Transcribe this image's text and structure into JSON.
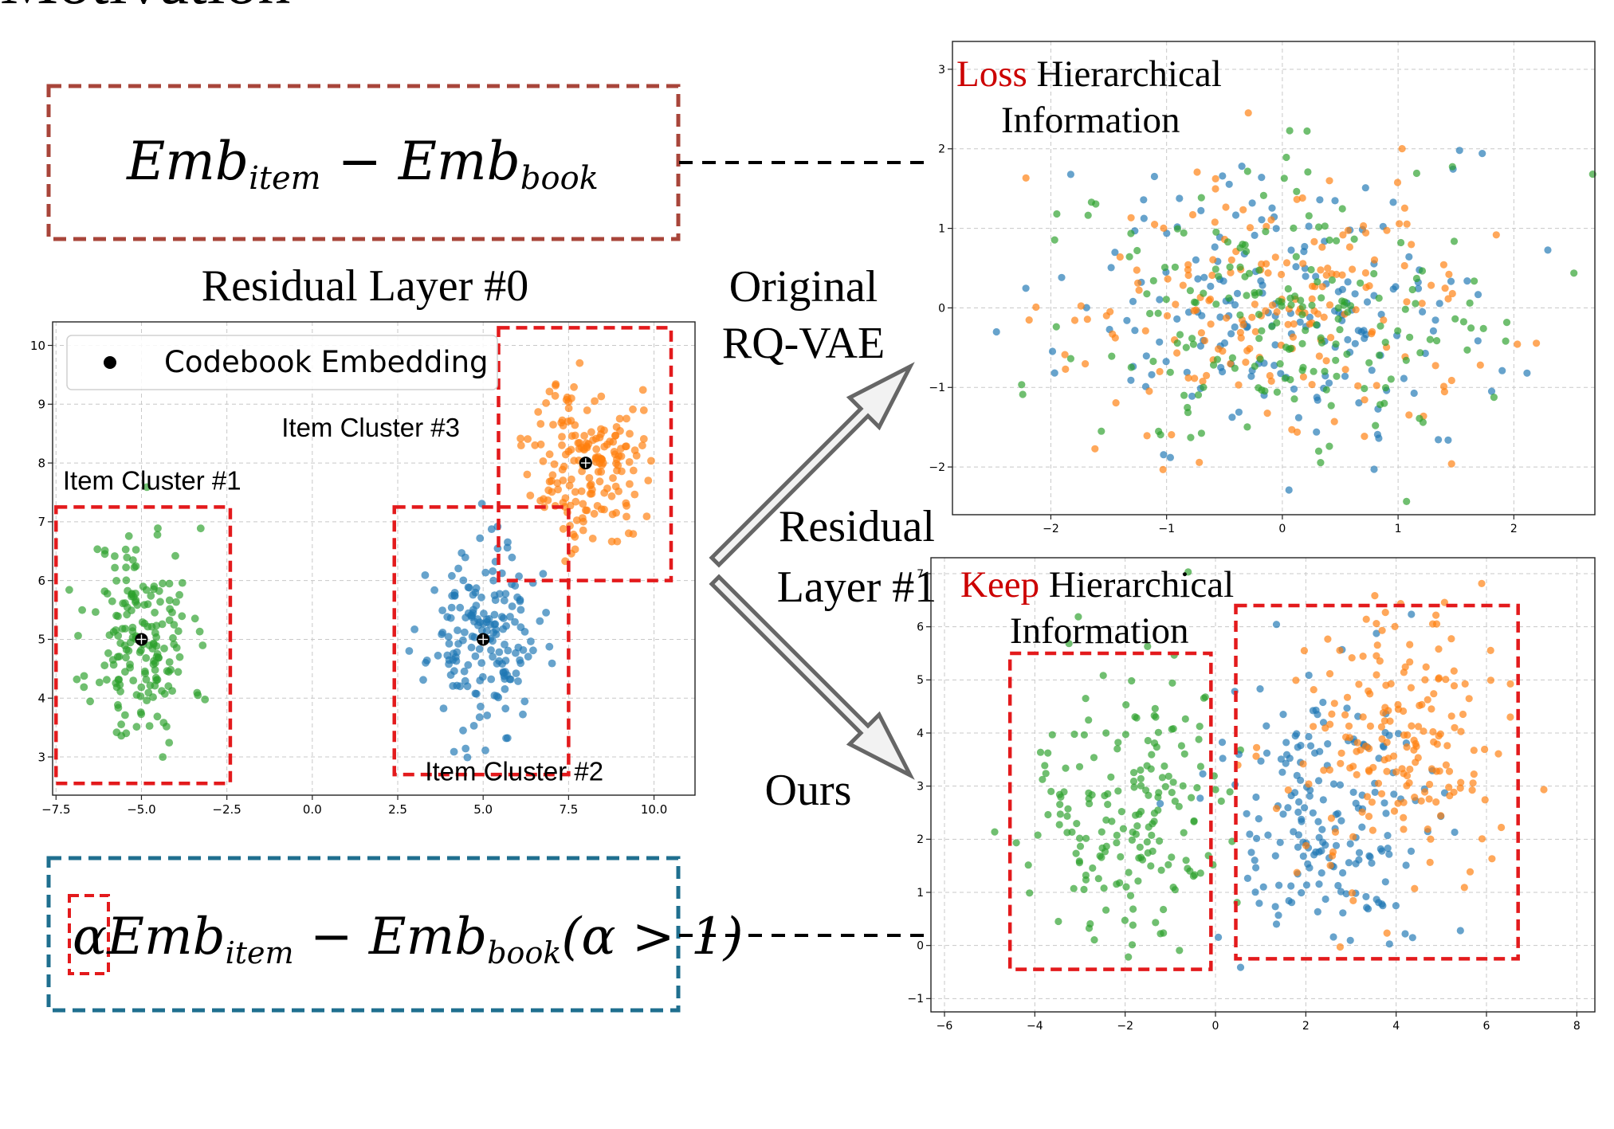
{
  "page_title_fragment": "Motivation",
  "formula_top": {
    "main": "Emb",
    "sub1": "item",
    "minus": " − ",
    "main2": "Emb",
    "sub2": "book"
  },
  "formula_bottom": {
    "alpha": "α",
    "main": "Emb",
    "sub1": "item",
    "minus": " − ",
    "main2": "Emb",
    "sub2": "book",
    "cond": "(α > 1)"
  },
  "labels": {
    "residual_layer_0": "Residual Layer #0",
    "original_line1": "Original",
    "original_line2": "RQ-VAE",
    "residual_line1": "Residual",
    "residual_line2": "Layer #1",
    "ours": "Ours"
  },
  "plot_titles": {
    "top_red": "Loss",
    "top_black": " Hierarchical",
    "top_line2": "Information",
    "bottom_red": "Keep",
    "bottom_black": " Hierarchical",
    "bottom_line2": "Information"
  },
  "chart_data": [
    {
      "id": "residual-layer-0",
      "type": "scatter",
      "title": "Residual Layer #0",
      "legend": {
        "label": "Codebook Embedding",
        "placement": "top-left"
      },
      "xlim": [
        -7.6,
        11.2
      ],
      "ylim": [
        2.35,
        10.4
      ],
      "x_ticks": [
        -7.5,
        -5.0,
        -2.5,
        0.0,
        2.5,
        5.0,
        7.5,
        10.0
      ],
      "x_tick_labels": [
        "−7.5",
        "−5.0",
        "−2.5",
        "0.0",
        "2.5",
        "5.0",
        "7.5",
        "10.0"
      ],
      "y_ticks": [
        3,
        4,
        5,
        6,
        7,
        8,
        9,
        10
      ],
      "y_tick_labels": [
        "3",
        "4",
        "5",
        "6",
        "7",
        "8",
        "9",
        "10"
      ],
      "grid": true,
      "clusters": [
        {
          "name": "Item Cluster #1",
          "color": "#2ca02c",
          "center": [
            -5.0,
            5.0
          ],
          "spread": [
            0.75,
            0.95
          ],
          "n": 180,
          "seed": 11
        },
        {
          "name": "Item Cluster #2",
          "color": "#1f77b4",
          "center": [
            5.0,
            5.0
          ],
          "spread": [
            0.8,
            0.75
          ],
          "n": 180,
          "seed": 23
        },
        {
          "name": "Item Cluster #3",
          "color": "#ff7f0e",
          "center": [
            8.0,
            8.0
          ],
          "spread": [
            0.8,
            0.7
          ],
          "n": 180,
          "seed": 37
        }
      ],
      "codebook_points": [
        [
          -5.0,
          5.0
        ],
        [
          5.0,
          5.0
        ],
        [
          8.0,
          8.0
        ]
      ],
      "cluster_labels": [
        {
          "text": "Item Cluster #1",
          "x": -7.3,
          "y": 7.55
        },
        {
          "text": "Item Cluster #3",
          "x": -0.9,
          "y": 8.45
        },
        {
          "text": "Item Cluster #2",
          "x": 3.3,
          "y": 2.6
        }
      ],
      "boxes": [
        {
          "x0": -7.5,
          "x1": -2.4,
          "y0": 2.55,
          "y1": 7.25
        },
        {
          "x0": 2.4,
          "x1": 7.5,
          "y0": 2.7,
          "y1": 7.25
        },
        {
          "x0": 5.45,
          "x1": 10.5,
          "y0": 6.0,
          "y1": 10.3
        }
      ]
    },
    {
      "id": "original-rqvae-layer-1",
      "type": "scatter",
      "xlim": [
        -2.85,
        2.7
      ],
      "ylim": [
        -2.6,
        3.35
      ],
      "x_ticks": [
        -2,
        -1,
        0,
        1,
        2
      ],
      "x_tick_labels": [
        "−2",
        "−1",
        "0",
        "1",
        "2"
      ],
      "y_ticks": [
        -2,
        -1,
        0,
        1,
        2,
        3
      ],
      "y_tick_labels": [
        "−2",
        "−1",
        "0",
        "1",
        "2",
        "3"
      ],
      "grid": true,
      "clusters": [
        {
          "color": "#1f77b4",
          "center": [
            0.0,
            0.0
          ],
          "spread": [
            0.9,
            0.85
          ],
          "n": 190,
          "seed": 101
        },
        {
          "color": "#ff7f0e",
          "center": [
            0.0,
            0.0
          ],
          "spread": [
            0.9,
            0.85
          ],
          "n": 190,
          "seed": 202
        },
        {
          "color": "#2ca02c",
          "center": [
            0.0,
            0.0
          ],
          "spread": [
            0.9,
            0.85
          ],
          "n": 190,
          "seed": 303
        }
      ],
      "boxes": []
    },
    {
      "id": "ours-layer-1",
      "type": "scatter",
      "xlim": [
        -6.3,
        8.4
      ],
      "ylim": [
        -1.25,
        7.3
      ],
      "x_ticks": [
        -6,
        -4,
        -2,
        0,
        2,
        4,
        6,
        8
      ],
      "x_tick_labels": [
        "−6",
        "−4",
        "−2",
        "0",
        "2",
        "4",
        "6",
        "8"
      ],
      "y_ticks": [
        -1,
        0,
        1,
        2,
        3,
        4,
        5,
        6,
        7
      ],
      "y_tick_labels": [
        "−1",
        "0",
        "1",
        "2",
        "3",
        "4",
        "5",
        "6",
        "7"
      ],
      "grid": true,
      "clusters": [
        {
          "color": "#2ca02c",
          "center": [
            -2.0,
            2.5
          ],
          "spread": [
            1.25,
            1.3
          ],
          "n": 190,
          "seed": 404
        },
        {
          "color": "#1f77b4",
          "center": [
            2.5,
            2.5
          ],
          "spread": [
            1.2,
            1.2
          ],
          "n": 190,
          "seed": 505
        },
        {
          "color": "#ff7f0e",
          "center": [
            4.0,
            3.8
          ],
          "spread": [
            1.1,
            1.2
          ],
          "n": 190,
          "seed": 606
        }
      ],
      "boxes": [
        {
          "x0": -4.55,
          "x1": -0.1,
          "y0": -0.45,
          "y1": 5.5
        },
        {
          "x0": 0.45,
          "x1": 6.7,
          "y0": -0.25,
          "y1": 6.4
        }
      ]
    }
  ],
  "colors": {
    "top_box": "#a8453a",
    "bottom_box": "#1f6f8f",
    "highlight_red": "#cc0000",
    "dashed_box_red": "#e31a1c",
    "arrow_stroke": "#666666",
    "arrow_fill": "#f2f2f2"
  }
}
